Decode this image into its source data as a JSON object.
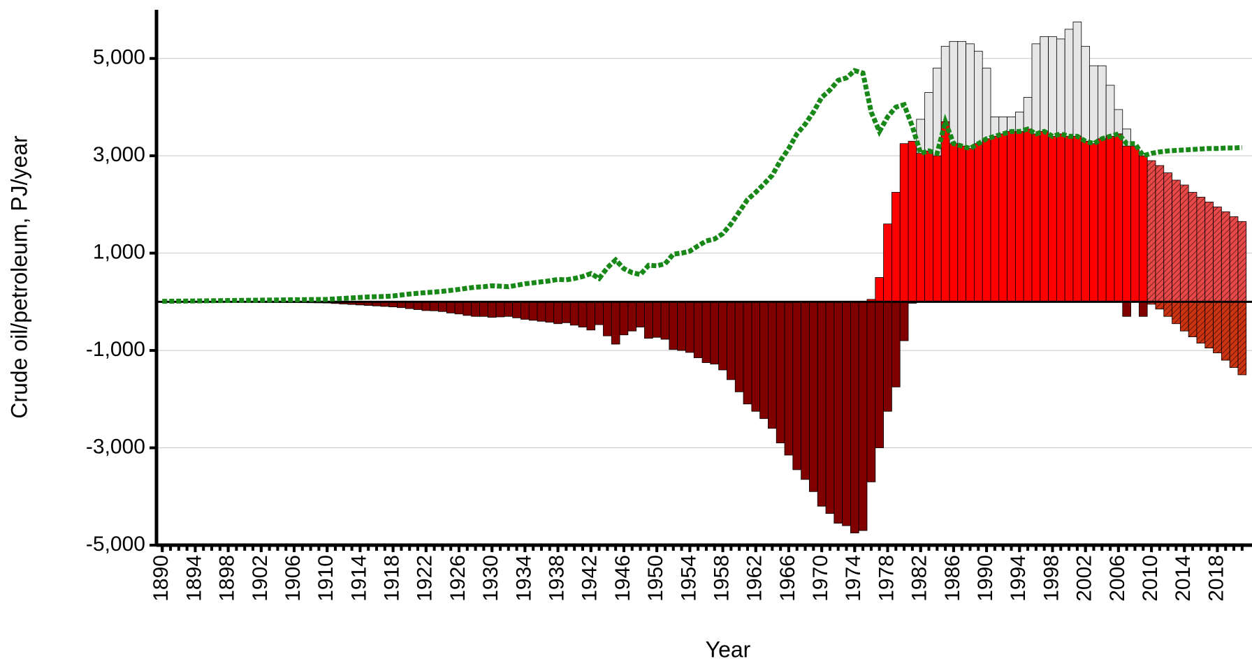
{
  "chart_data": {
    "type": "bar",
    "x_label": "Year",
    "y_label": "Crude oil/petroleum, PJ/year",
    "x": [
      1890,
      1891,
      1892,
      1893,
      1894,
      1895,
      1896,
      1897,
      1898,
      1899,
      1900,
      1901,
      1902,
      1903,
      1904,
      1905,
      1906,
      1907,
      1908,
      1909,
      1910,
      1911,
      1912,
      1913,
      1914,
      1915,
      1916,
      1917,
      1918,
      1919,
      1920,
      1921,
      1922,
      1923,
      1924,
      1925,
      1926,
      1927,
      1928,
      1929,
      1930,
      1931,
      1932,
      1933,
      1934,
      1935,
      1936,
      1937,
      1938,
      1939,
      1940,
      1941,
      1942,
      1943,
      1944,
      1945,
      1946,
      1947,
      1948,
      1949,
      1950,
      1951,
      1952,
      1953,
      1954,
      1955,
      1956,
      1957,
      1958,
      1959,
      1960,
      1961,
      1962,
      1963,
      1964,
      1965,
      1966,
      1967,
      1968,
      1969,
      1970,
      1971,
      1972,
      1973,
      1974,
      1975,
      1976,
      1977,
      1978,
      1979,
      1980,
      1981,
      1982,
      1983,
      1984,
      1985,
      1986,
      1987,
      1988,
      1989,
      1990,
      1991,
      1992,
      1993,
      1994,
      1995,
      1996,
      1997,
      1998,
      1999,
      2000,
      2001,
      2002,
      2003,
      2004,
      2005,
      2006,
      2007,
      2008,
      2009,
      2010,
      2011,
      2012,
      2013,
      2014,
      2015,
      2016,
      2017,
      2018,
      2019,
      2020,
      2021
    ],
    "xlim": [
      1889.3,
      2022.2
    ],
    "xticks": [
      1890,
      1894,
      1898,
      1902,
      1906,
      1910,
      1914,
      1918,
      1922,
      1926,
      1930,
      1934,
      1938,
      1942,
      1946,
      1950,
      1954,
      1958,
      1962,
      1966,
      1970,
      1974,
      1978,
      1982,
      1986,
      1990,
      1994,
      1998,
      2002,
      2006,
      2010,
      2014,
      2018
    ],
    "ylim": [
      -5000,
      6000
    ],
    "yticks": [
      {
        "value": -5000,
        "label": "-5,000"
      },
      {
        "value": -3000,
        "label": "-3,000"
      },
      {
        "value": -1000,
        "label": "-1,000"
      },
      {
        "value": 1000,
        "label": "1,000"
      },
      {
        "value": 3000,
        "label": "3,000"
      },
      {
        "value": 5000,
        "label": "5,000"
      }
    ],
    "grid": true,
    "series": [
      {
        "type": "bar",
        "color": "#e6e6e6",
        "values": [
          null,
          null,
          null,
          null,
          null,
          null,
          null,
          null,
          null,
          null,
          null,
          null,
          null,
          null,
          null,
          null,
          null,
          null,
          null,
          null,
          null,
          null,
          null,
          null,
          null,
          null,
          null,
          null,
          null,
          null,
          null,
          null,
          null,
          null,
          null,
          null,
          null,
          null,
          null,
          null,
          null,
          null,
          null,
          null,
          null,
          null,
          null,
          null,
          null,
          null,
          null,
          null,
          null,
          null,
          null,
          null,
          null,
          null,
          null,
          null,
          null,
          null,
          null,
          null,
          null,
          null,
          null,
          null,
          null,
          null,
          null,
          null,
          null,
          null,
          null,
          null,
          null,
          null,
          null,
          null,
          null,
          null,
          null,
          null,
          null,
          null,
          null,
          null,
          null,
          null,
          null,
          null,
          3750,
          4300,
          4800,
          5250,
          5350,
          5350,
          5300,
          5150,
          4800,
          3800,
          3800,
          3800,
          3900,
          4200,
          5300,
          5450,
          5450,
          5400,
          5600,
          5750,
          5250,
          4850,
          4850,
          4450,
          3950,
          3550,
          null,
          null,
          null,
          null,
          null,
          null,
          null,
          null,
          null,
          null,
          null,
          null,
          null,
          null
        ]
      },
      {
        "type": "bar",
        "color": "#ff0000",
        "values": [
          null,
          null,
          null,
          null,
          null,
          null,
          null,
          null,
          null,
          null,
          null,
          null,
          null,
          null,
          null,
          null,
          null,
          null,
          null,
          null,
          null,
          null,
          null,
          null,
          null,
          null,
          null,
          null,
          null,
          null,
          null,
          null,
          null,
          null,
          null,
          null,
          null,
          null,
          null,
          null,
          null,
          null,
          null,
          null,
          null,
          null,
          null,
          null,
          null,
          null,
          null,
          null,
          null,
          null,
          null,
          null,
          null,
          null,
          null,
          null,
          null,
          null,
          null,
          null,
          null,
          null,
          null,
          null,
          null,
          null,
          null,
          null,
          null,
          null,
          null,
          null,
          null,
          null,
          null,
          null,
          null,
          null,
          null,
          null,
          null,
          null,
          50,
          500,
          1600,
          2250,
          3250,
          3300,
          3050,
          3100,
          3000,
          3700,
          3250,
          3200,
          3150,
          3250,
          3350,
          3400,
          3450,
          3500,
          3500,
          3550,
          3450,
          3500,
          3400,
          3450,
          3400,
          3400,
          3300,
          3250,
          3350,
          3400,
          3450,
          3200,
          3200,
          3000,
          null,
          null,
          null,
          null,
          null,
          null,
          null,
          null,
          null,
          null,
          null,
          null
        ]
      },
      {
        "type": "bar",
        "color": "#e84848",
        "hatch": true,
        "values": [
          null,
          null,
          null,
          null,
          null,
          null,
          null,
          null,
          null,
          null,
          null,
          null,
          null,
          null,
          null,
          null,
          null,
          null,
          null,
          null,
          null,
          null,
          null,
          null,
          null,
          null,
          null,
          null,
          null,
          null,
          null,
          null,
          null,
          null,
          null,
          null,
          null,
          null,
          null,
          null,
          null,
          null,
          null,
          null,
          null,
          null,
          null,
          null,
          null,
          null,
          null,
          null,
          null,
          null,
          null,
          null,
          null,
          null,
          null,
          null,
          null,
          null,
          null,
          null,
          null,
          null,
          null,
          null,
          null,
          null,
          null,
          null,
          null,
          null,
          null,
          null,
          null,
          null,
          null,
          null,
          null,
          null,
          null,
          null,
          null,
          null,
          null,
          null,
          null,
          null,
          null,
          null,
          null,
          null,
          null,
          null,
          null,
          null,
          null,
          null,
          null,
          null,
          null,
          null,
          null,
          null,
          null,
          null,
          null,
          null,
          null,
          null,
          null,
          null,
          null,
          null,
          null,
          null,
          null,
          null,
          2900,
          2800,
          2650,
          2500,
          2400,
          2250,
          2150,
          2050,
          1950,
          1850,
          1750,
          1650
        ]
      },
      {
        "type": "bar",
        "color": "#800000",
        "values": [
          -5,
          -5,
          -6,
          -6,
          -7,
          -7,
          -8,
          -8,
          -9,
          -10,
          -10,
          -11,
          -12,
          -13,
          -14,
          -15,
          -16,
          -18,
          -20,
          -22,
          -25,
          -35,
          -45,
          -55,
          -65,
          -75,
          -85,
          -95,
          -105,
          -120,
          -140,
          -160,
          -180,
          -185,
          -200,
          -230,
          -250,
          -280,
          -300,
          -300,
          -320,
          -310,
          -300,
          -330,
          -360,
          -380,
          -400,
          -420,
          -450,
          -430,
          -480,
          -520,
          -580,
          -470,
          -700,
          -870,
          -680,
          -600,
          -520,
          -750,
          -730,
          -770,
          -980,
          -1000,
          -1040,
          -1150,
          -1250,
          -1280,
          -1400,
          -1600,
          -1850,
          -2100,
          -2250,
          -2400,
          -2600,
          -2900,
          -3150,
          -3450,
          -3650,
          -3900,
          -4200,
          -4350,
          -4550,
          -4600,
          -4750,
          -4700,
          -3700,
          -3000,
          -2250,
          -1750,
          -800,
          -30,
          null,
          null,
          null,
          null,
          null,
          null,
          null,
          null,
          null,
          null,
          null,
          null,
          null,
          null,
          null,
          null,
          null,
          null,
          null,
          null,
          null,
          null,
          null,
          null,
          null,
          -300,
          null,
          -300,
          null,
          null,
          null,
          null,
          null,
          null,
          null,
          null,
          null,
          null,
          null,
          null
        ]
      },
      {
        "type": "bar",
        "color": "#cc3311",
        "hatch": true,
        "values": [
          null,
          null,
          null,
          null,
          null,
          null,
          null,
          null,
          null,
          null,
          null,
          null,
          null,
          null,
          null,
          null,
          null,
          null,
          null,
          null,
          null,
          null,
          null,
          null,
          null,
          null,
          null,
          null,
          null,
          null,
          null,
          null,
          null,
          null,
          null,
          null,
          null,
          null,
          null,
          null,
          null,
          null,
          null,
          null,
          null,
          null,
          null,
          null,
          null,
          null,
          null,
          null,
          null,
          null,
          null,
          null,
          null,
          null,
          null,
          null,
          null,
          null,
          null,
          null,
          null,
          null,
          null,
          null,
          null,
          null,
          null,
          null,
          null,
          null,
          null,
          null,
          null,
          null,
          null,
          null,
          null,
          null,
          null,
          null,
          null,
          null,
          null,
          null,
          null,
          null,
          null,
          null,
          null,
          null,
          null,
          null,
          null,
          null,
          null,
          null,
          null,
          null,
          null,
          null,
          null,
          null,
          null,
          null,
          null,
          null,
          null,
          null,
          null,
          null,
          null,
          null,
          null,
          null,
          null,
          null,
          -50,
          -150,
          -300,
          -450,
          -600,
          -720,
          -850,
          -950,
          -1050,
          -1200,
          -1350,
          -1500
        ]
      },
      {
        "type": "line",
        "color": "#188818",
        "dashed": true,
        "values": [
          10,
          12,
          14,
          16,
          18,
          20,
          22,
          24,
          26,
          28,
          30,
          32,
          34,
          36,
          38,
          40,
          42,
          44,
          46,
          48,
          50,
          60,
          70,
          80,
          90,
          100,
          105,
          110,
          120,
          140,
          160,
          175,
          190,
          200,
          215,
          235,
          255,
          280,
          300,
          310,
          330,
          320,
          310,
          340,
          370,
          390,
          410,
          430,
          460,
          450,
          480,
          520,
          580,
          480,
          700,
          860,
          680,
          600,
          560,
          750,
          740,
          780,
          980,
          1000,
          1040,
          1150,
          1250,
          1290,
          1400,
          1600,
          1850,
          2100,
          2250,
          2420,
          2600,
          2900,
          3150,
          3450,
          3650,
          3900,
          4200,
          4350,
          4550,
          4600,
          4750,
          4700,
          3900,
          3500,
          3800,
          4000,
          4050,
          3600,
          3050,
          3100,
          3050,
          3700,
          3250,
          3200,
          3150,
          3250,
          3350,
          3400,
          3450,
          3500,
          3500,
          3550,
          3450,
          3500,
          3400,
          3450,
          3400,
          3400,
          3300,
          3250,
          3350,
          3400,
          3450,
          3250,
          3250,
          3000,
          3050,
          3080,
          3100,
          3110,
          3120,
          3130,
          3140,
          3150,
          3150,
          3160,
          3160,
          3170
        ]
      }
    ]
  }
}
